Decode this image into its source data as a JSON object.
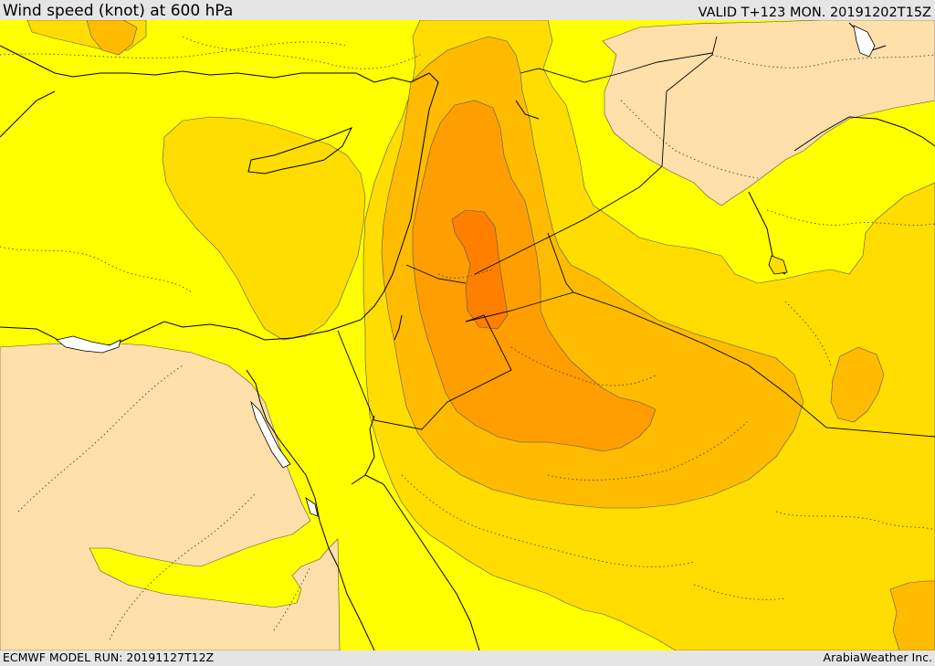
{
  "header": {
    "title": "Wind speed (knot) at 600 hPa",
    "valid": "VALID T+123 MON. 20191202T15Z"
  },
  "footer": {
    "model_run": "ECMWF MODEL RUN: 20191127T12Z",
    "credit": "ArabiaWeather Inc."
  },
  "colors": {
    "background": "#e5e5e5",
    "band_yellow": "#ffff00",
    "band_gold": "#ffdd00",
    "band_amber": "#ffbb00",
    "band_orange_light": "#ff9e00",
    "band_orange": "#ff7f00",
    "land_low": "#ffdfaa",
    "water_missing": "#ffffff",
    "coastline": "#000000",
    "border_dotted": "#333333"
  }
}
